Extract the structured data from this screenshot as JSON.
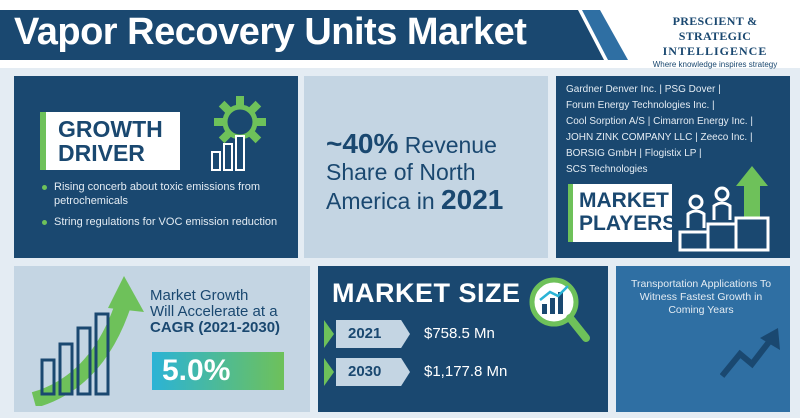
{
  "header": {
    "title": "Vapor Recovery Units Market",
    "logo_line1": "PRESCIENT & STRATEGIC",
    "logo_line2": "INTELLIGENCE",
    "logo_tagline": "Where knowledge inspires strategy"
  },
  "growth_driver": {
    "label_line1": "GROWTH",
    "label_line2": "DRIVER",
    "items": [
      "Rising concerb about toxic emissions from petrochemicals",
      "String regulations for VOC emission reduction"
    ]
  },
  "revenue_share": {
    "value": "~40%",
    "text_a": "Revenue",
    "text_b": "Share of North",
    "text_c": "America in",
    "year": "2021"
  },
  "market_players": {
    "companies": [
      "Gardner Denver Inc.",
      "PSG Dover",
      "Forum Energy Technologies Inc.",
      "Cool Sorption A/S",
      "Cimarron Energy Inc.",
      "JOHN ZINK COMPANY LLC",
      "Zeeco Inc.",
      "BORSIG GmbH",
      "Flogistix LP",
      "SCS Technologies"
    ],
    "label_line1": "MARKET",
    "label_line2": "PLAYERS"
  },
  "cagr": {
    "line1": "Market Growth",
    "line2": "Will Accelerate at a",
    "line3": "CAGR (2021-2030)",
    "value": "5.0%"
  },
  "market_size": {
    "title": "MARKET SIZE",
    "rows": [
      {
        "year": "2021",
        "value": "$758.5 Mn"
      },
      {
        "year": "2030",
        "value": "$1,177.8 Mn"
      }
    ]
  },
  "transportation": {
    "text": "Transportation Applications To Witness Fastest Growth in Coming Years"
  },
  "colors": {
    "navy": "#1a4870",
    "mid_blue": "#2f6fa3",
    "light_blue": "#c4d5e3",
    "green": "#6ec15a",
    "cyan": "#2bb3d6"
  },
  "icons": [
    "gear-icon",
    "bar-chart-icon",
    "podium-icon",
    "growth-arrow-icon",
    "magnifier-chart-icon",
    "trend-arrow-icon"
  ]
}
